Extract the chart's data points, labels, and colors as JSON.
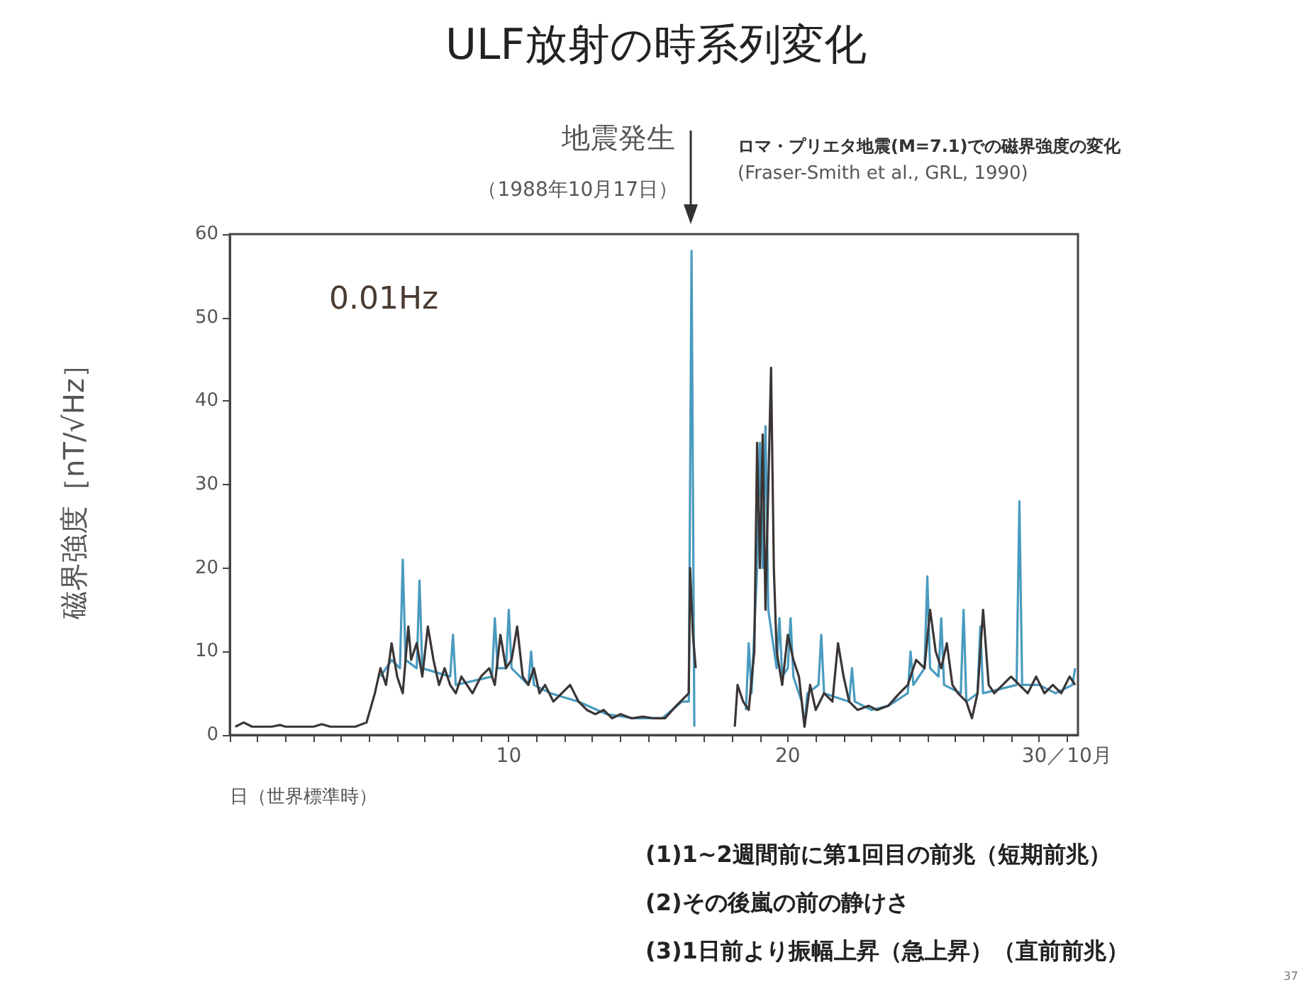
{
  "chart_data": {
    "type": "line",
    "title": "ULF放射の時系列変化",
    "subtitle": "ロマ・プリエタ地震(M=7.1)での磁界強度の変化",
    "xlabel": "日（世界標準時）",
    "ylabel": "磁界強度［nT/√Hz］",
    "annotations": [
      "(Fraser-Smith et al., GRL, 1990)",
      "0.01Hz",
      "地震発生",
      "（1988年10月17日）",
      "(1)1~2週間前に第1回目の前兆（短期前兆）",
      "(2)その後嵐の前の静けさ",
      "(3)1日前より振幅上昇（急上昇）（直前前兆）",
      "37"
    ],
    "xlim": [
      0,
      30.4
    ],
    "ylim": [
      0,
      60
    ],
    "yticks": [
      0,
      10,
      20,
      30,
      40,
      50,
      60
    ],
    "xticks": [
      {
        "value": 0,
        "label": null
      },
      {
        "value": 1,
        "label": null
      },
      {
        "value": 2,
        "label": null
      },
      {
        "value": 3,
        "label": null
      },
      {
        "value": 4,
        "label": null
      },
      {
        "value": 5,
        "label": null
      },
      {
        "value": 6,
        "label": null
      },
      {
        "value": 7,
        "label": null
      },
      {
        "value": 8,
        "label": null
      },
      {
        "value": 9,
        "label": null
      },
      10,
      {
        "value": 11,
        "label": null
      },
      {
        "value": 12,
        "label": null
      },
      {
        "value": 13,
        "label": null
      },
      {
        "value": 14,
        "label": null
      },
      {
        "value": 15,
        "label": null
      },
      {
        "value": 16,
        "label": null
      },
      {
        "value": 17,
        "label": null
      },
      {
        "value": 18,
        "label": null
      },
      {
        "value": 19,
        "label": null
      },
      20,
      {
        "value": 21,
        "label": null
      },
      {
        "value": 22,
        "label": null
      },
      {
        "value": 23,
        "label": null
      },
      {
        "value": 24,
        "label": null
      },
      {
        "value": 25,
        "label": null
      },
      {
        "value": 26,
        "label": null
      },
      {
        "value": 27,
        "label": null
      },
      {
        "value": 28,
        "label": null
      },
      {
        "value": 29,
        "label": null
      },
      {
        "value": 30,
        "label": "30／10月"
      }
    ],
    "series": [
      {
        "color": "#4a9bbf",
        "x": [
          5.4,
          5.8,
          6.1,
          6.2,
          6.3,
          6.7,
          6.8,
          6.9,
          7.9,
          8.0,
          8.1,
          9.4,
          9.5,
          9.6,
          9.9,
          10.0,
          10.1,
          10.7,
          10.8,
          10.9,
          11.5,
          12.5,
          13.5,
          14.5,
          15.5,
          16.2,
          16.45,
          16.55,
          16.65,
          17.4,
          18.5,
          18.6,
          18.7,
          18.9,
          19.0,
          19.1,
          19.2,
          19.3,
          19.6,
          19.7,
          19.8,
          20.0,
          20.1,
          20.2,
          20.5,
          20.6,
          20.7,
          21.1,
          21.2,
          21.3,
          22.2,
          22.3,
          22.4,
          23.0,
          23.6,
          24.3,
          24.4,
          24.5,
          24.9,
          25.0,
          25.1,
          25.4,
          25.5,
          25.6,
          26.2,
          26.3,
          26.4,
          26.8,
          26.9,
          27.0,
          28.2,
          28.3,
          28.4,
          29.0,
          29.6,
          30.2,
          30.3
        ],
        "values": [
          7,
          9,
          8,
          21,
          9,
          8,
          18.5,
          8,
          7,
          12,
          6,
          7,
          14,
          8,
          8,
          15,
          8,
          6,
          10,
          6,
          5,
          4,
          2.5,
          2,
          2,
          4,
          4,
          58,
          1,
          null,
          3,
          11,
          5,
          20,
          35,
          20,
          37,
          15,
          8,
          14,
          7,
          8,
          14,
          7,
          4,
          1,
          5,
          6,
          12,
          5,
          4,
          8,
          4,
          3,
          3.5,
          5,
          10,
          6,
          8,
          19,
          8,
          7,
          14,
          6,
          5,
          15,
          4,
          5,
          13,
          5,
          6,
          28,
          6,
          6,
          5,
          6,
          8
        ]
      },
      {
        "color": "#3b3535",
        "x": [
          0.2,
          0.5,
          0.8,
          1.5,
          1.8,
          2.0,
          3.0,
          3.3,
          3.6,
          4.0,
          4.5,
          4.9,
          5.2,
          5.4,
          5.6,
          5.8,
          6.0,
          6.2,
          6.4,
          6.5,
          6.7,
          6.9,
          7.1,
          7.3,
          7.5,
          7.7,
          7.9,
          8.1,
          8.3,
          8.5,
          8.7,
          9.0,
          9.3,
          9.5,
          9.7,
          9.9,
          10.1,
          10.3,
          10.5,
          10.7,
          10.9,
          11.1,
          11.3,
          11.6,
          11.9,
          12.2,
          12.5,
          12.8,
          13.1,
          13.4,
          13.7,
          14.0,
          14.4,
          14.8,
          15.2,
          15.6,
          16.0,
          16.3,
          16.45,
          16.5,
          16.6,
          16.7,
          17.4,
          18.1,
          18.2,
          18.4,
          18.6,
          18.8,
          18.9,
          19.0,
          19.1,
          19.2,
          19.4,
          19.5,
          19.6,
          19.8,
          20.0,
          20.2,
          20.4,
          20.6,
          20.8,
          21.0,
          21.3,
          21.6,
          21.8,
          22.0,
          22.2,
          22.5,
          22.9,
          23.2,
          23.6,
          24.0,
          24.3,
          24.6,
          24.9,
          25.1,
          25.3,
          25.5,
          25.7,
          25.9,
          26.1,
          26.4,
          26.6,
          26.8,
          27.0,
          27.2,
          27.4,
          27.7,
          28.0,
          28.3,
          28.6,
          28.9,
          29.2,
          29.5,
          29.8,
          30.1,
          30.3
        ],
        "values": [
          1,
          1.5,
          1,
          1,
          1.2,
          1,
          1,
          1.3,
          1,
          1,
          1,
          1.5,
          5,
          8,
          6,
          11,
          7,
          5,
          13,
          9,
          11,
          7,
          13,
          9,
          6,
          8,
          6,
          5,
          7,
          6,
          5,
          7,
          8,
          6,
          12,
          8,
          9,
          13,
          7,
          6,
          8,
          5,
          6,
          4,
          5,
          6,
          4,
          3,
          2.5,
          3,
          2,
          2.5,
          2,
          2.2,
          2,
          2,
          3.5,
          4.5,
          5,
          20,
          12,
          8,
          null,
          1,
          6,
          4,
          3,
          10,
          35,
          20,
          36,
          15,
          44,
          20,
          10,
          6,
          12,
          9,
          7,
          1,
          6,
          3,
          5,
          4,
          11,
          7,
          4,
          3,
          3.5,
          3,
          3.5,
          5,
          6,
          9,
          8,
          15,
          10,
          8,
          11,
          6,
          5,
          4,
          2,
          5,
          15,
          6,
          5,
          6,
          7,
          6,
          5,
          7,
          5,
          6,
          5,
          7,
          6
        ]
      }
    ]
  }
}
